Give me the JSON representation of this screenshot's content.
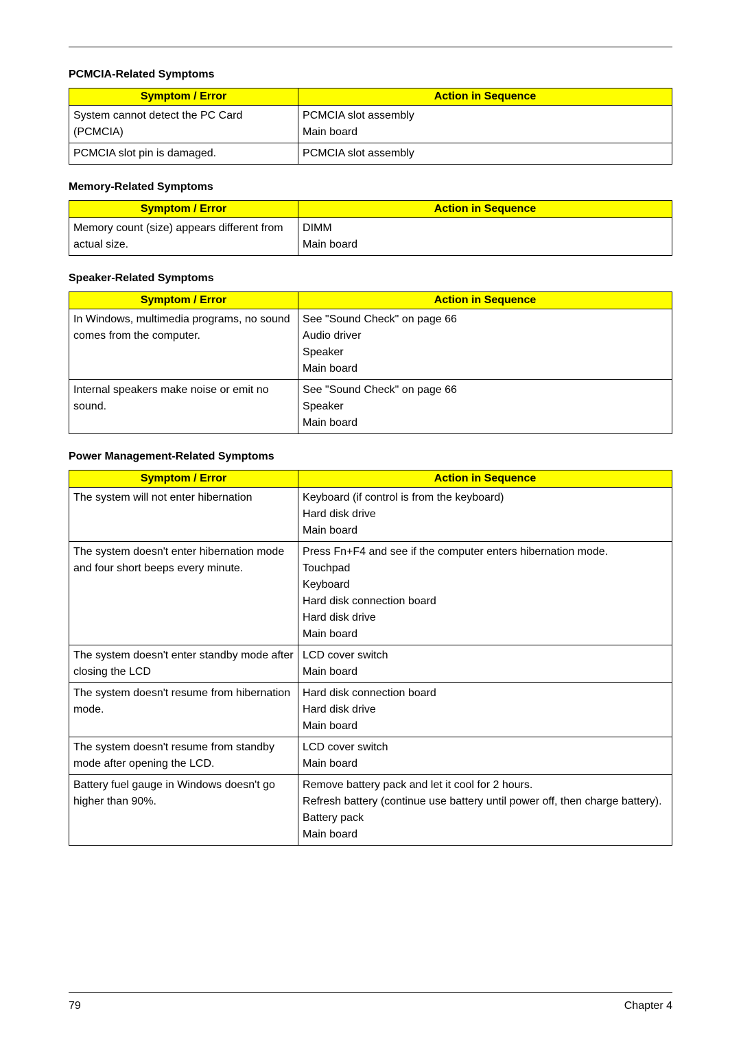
{
  "sections": [
    {
      "title": "PCMCIA-Related Symptoms",
      "headers": [
        "Symptom / Error",
        "Action in Sequence"
      ],
      "rows": [
        {
          "symptom": "System cannot detect the PC Card (PCMCIA)",
          "action": "PCMCIA slot assembly\nMain board"
        },
        {
          "symptom": "PCMCIA slot pin is damaged.",
          "action": "PCMCIA slot assembly"
        }
      ]
    },
    {
      "title": "Memory-Related Symptoms",
      "headers": [
        "Symptom / Error",
        "Action in Sequence"
      ],
      "rows": [
        {
          "symptom": "Memory count (size) appears different from actual size.",
          "action": "DIMM\nMain board"
        }
      ]
    },
    {
      "title": "Speaker-Related Symptoms",
      "headers": [
        "Symptom / Error",
        "Action in Sequence"
      ],
      "rows": [
        {
          "symptom": "In Windows, multimedia programs, no sound comes from the computer.",
          "action": "See \"Sound Check\" on page 66\nAudio driver\nSpeaker\nMain board"
        },
        {
          "symptom": "Internal speakers make noise or emit no sound.",
          "action": "See \"Sound Check\" on page 66\nSpeaker\nMain board"
        }
      ]
    },
    {
      "title": "Power Management-Related Symptoms",
      "headers": [
        "Symptom / Error",
        "Action in Sequence"
      ],
      "rows": [
        {
          "symptom": "The system will not enter hibernation",
          "action": "Keyboard (if control is from the keyboard)\nHard disk drive\nMain board"
        },
        {
          "symptom": "The system doesn't enter hibernation mode and four short beeps every minute.",
          "action": "Press Fn+F4 and see if the computer enters hibernation mode.\nTouchpad\nKeyboard\nHard disk connection board\nHard disk drive\nMain board"
        },
        {
          "symptom": "The system doesn't enter standby mode after closing the LCD",
          "action": "LCD cover switch\nMain board"
        },
        {
          "symptom": "The system doesn't resume from hibernation mode.",
          "action": "Hard disk connection board\nHard disk drive\nMain board"
        },
        {
          "symptom": "The system doesn't resume from standby mode after opening the LCD.",
          "action": "LCD cover switch\nMain board"
        },
        {
          "symptom": "Battery fuel gauge in Windows doesn't go higher than 90%.",
          "action": "Remove battery pack and let it cool for 2 hours.\nRefresh battery (continue use battery until power off, then charge battery).\nBattery pack\nMain board"
        }
      ]
    }
  ],
  "footer": {
    "page": "79",
    "chapter": "Chapter 4"
  },
  "colors": {
    "header_bg": "#ffff00",
    "border": "#000000",
    "text": "#000000",
    "bg": "#ffffff"
  }
}
